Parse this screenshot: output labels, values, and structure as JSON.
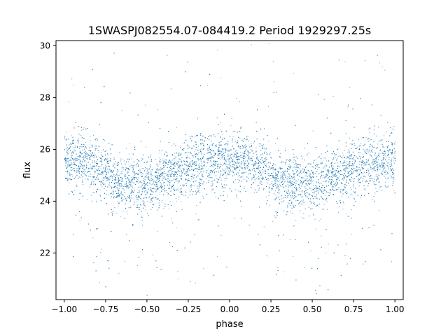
{
  "chart_data": {
    "type": "scatter",
    "title": "1SWASPJ082554.07-084419.2 Period 1929297.25s",
    "xlabel": "phase",
    "ylabel": "flux",
    "xlim": [
      -1.05,
      1.05
    ],
    "ylim": [
      20.2,
      30.2
    ],
    "xticks": [
      -1.0,
      -0.75,
      -0.5,
      -0.25,
      0.0,
      0.25,
      0.5,
      0.75,
      1.0
    ],
    "xtick_labels": [
      "−1.00",
      "−0.75",
      "−0.50",
      "−0.25",
      "0.00",
      "0.25",
      "0.50",
      "0.75",
      "1.00"
    ],
    "yticks": [
      22,
      24,
      26,
      28,
      30
    ],
    "ytick_labels": [
      "22",
      "24",
      "26",
      "28",
      "30"
    ],
    "grid": false,
    "marker_color": "#1f77b4",
    "point_count": 9000,
    "series": [
      {
        "phase_profile": [
          {
            "x": -1.0,
            "y": 25.6
          },
          {
            "x": -0.9,
            "y": 25.5
          },
          {
            "x": -0.8,
            "y": 25.3
          },
          {
            "x": -0.7,
            "y": 24.8
          },
          {
            "x": -0.6,
            "y": 24.7
          },
          {
            "x": -0.5,
            "y": 24.6
          },
          {
            "x": -0.4,
            "y": 24.9
          },
          {
            "x": -0.3,
            "y": 25.1
          },
          {
            "x": -0.2,
            "y": 25.4
          },
          {
            "x": -0.1,
            "y": 25.5
          },
          {
            "x": 0.0,
            "y": 25.6
          },
          {
            "x": 0.1,
            "y": 25.5
          },
          {
            "x": 0.2,
            "y": 25.3
          },
          {
            "x": 0.3,
            "y": 24.8
          },
          {
            "x": 0.4,
            "y": 24.7
          },
          {
            "x": 0.5,
            "y": 24.6
          },
          {
            "x": 0.6,
            "y": 24.9
          },
          {
            "x": 0.7,
            "y": 25.1
          },
          {
            "x": 0.8,
            "y": 25.4
          },
          {
            "x": 0.9,
            "y": 25.5
          },
          {
            "x": 1.0,
            "y": 25.6
          }
        ],
        "scatter_sd": 0.55
      }
    ]
  }
}
